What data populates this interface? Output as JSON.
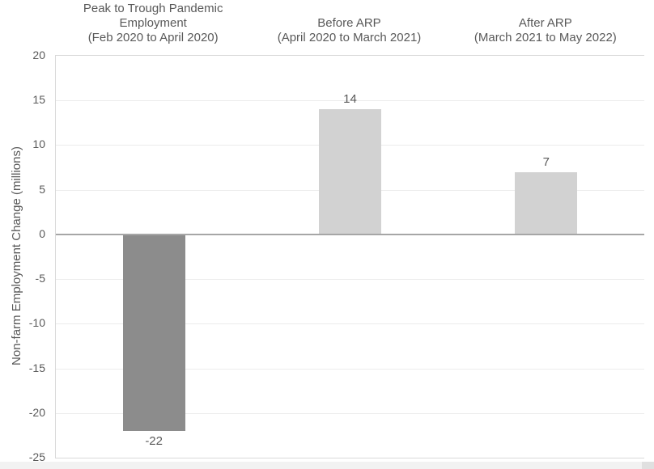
{
  "chart_data": {
    "type": "bar",
    "title": "",
    "categories": [
      {
        "lines": [
          "Peak to Trough Pandemic",
          "Employment",
          "(Feb 2020 to April 2020)"
        ]
      },
      {
        "lines": [
          "Before ARP",
          "(April 2020 to March 2021)"
        ]
      },
      {
        "lines": [
          "After ARP",
          "(March 2021 to May 2022)"
        ]
      }
    ],
    "values": [
      -22,
      14,
      7
    ],
    "value_labels": [
      "-22",
      "14",
      "7"
    ],
    "ylabel": "Non-farm Employment Change (millions)",
    "ylim": [
      -25,
      20
    ],
    "yticks": [
      20,
      15,
      10,
      5,
      0,
      -5,
      -10,
      -15,
      -20,
      -25
    ],
    "grid": true,
    "legend": false,
    "bar_colors": [
      "#8c8c8c",
      "#d2d2d2",
      "#d2d2d2"
    ],
    "colors": {
      "text": "#595959",
      "gridline": "#ececec",
      "zero_line": "#a6a6a6",
      "plot_border": "#d9d9d9",
      "scrollbar_track": "#f2f2f2",
      "scrollbar_corner": "#e0e0e0"
    }
  }
}
